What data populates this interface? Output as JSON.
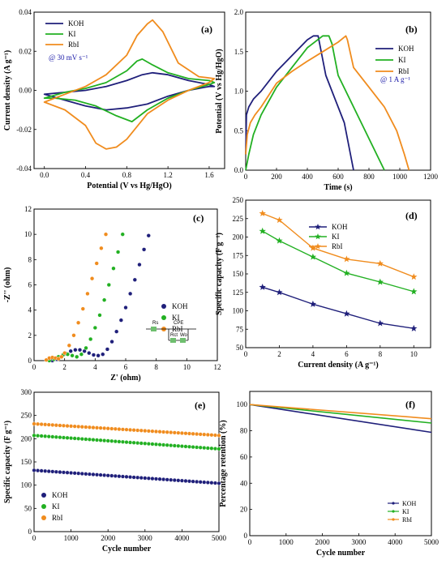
{
  "colors": {
    "koh": "#1f1f7a",
    "ki": "#22b022",
    "rbi": "#f08c1e",
    "note": "#1a1aa8"
  },
  "chart_data": [
    {
      "panel": "(a)",
      "type": "line",
      "xlabel": "Potential (V vs Hg/HgO)",
      "ylabel": "Current density (A g⁻¹)",
      "xlim": [
        -0.1,
        1.75
      ],
      "ylim": [
        -0.04,
        0.04
      ],
      "xticks": [
        0.0,
        0.4,
        0.8,
        1.2,
        1.6
      ],
      "xticklabels": [
        "0.0",
        "0.4",
        "0.8",
        "1.2",
        "1.6"
      ],
      "yticks": [
        -0.04,
        -0.02,
        0.0,
        0.02,
        0.04
      ],
      "yticklabels": [
        "-0.04",
        "-0.02",
        "0.00",
        "0.02",
        "0.04"
      ],
      "annotation": "@ 30 mV s⁻¹",
      "legend": "top-left",
      "series": [
        {
          "name": "KOH",
          "color": "#1f1f7a",
          "x": [
            0.0,
            0.2,
            0.4,
            0.6,
            0.8,
            0.95,
            1.05,
            1.2,
            1.4,
            1.6,
            1.65,
            1.6,
            1.4,
            1.2,
            1.0,
            0.8,
            0.6,
            0.4,
            0.2,
            0.0
          ],
          "y": [
            -0.002,
            -0.001,
            0.0,
            0.002,
            0.005,
            0.008,
            0.009,
            0.008,
            0.005,
            0.003,
            0.002,
            0.002,
            0.0,
            -0.003,
            -0.007,
            -0.009,
            -0.01,
            -0.008,
            -0.005,
            -0.002
          ]
        },
        {
          "name": "KI",
          "color": "#22b022",
          "x": [
            0.0,
            0.2,
            0.4,
            0.6,
            0.8,
            0.9,
            0.95,
            1.05,
            1.2,
            1.4,
            1.6,
            1.65,
            1.6,
            1.4,
            1.2,
            1.0,
            0.85,
            0.7,
            0.5,
            0.3,
            0.1,
            0.0
          ],
          "y": [
            -0.004,
            -0.001,
            0.001,
            0.004,
            0.01,
            0.015,
            0.016,
            0.013,
            0.009,
            0.006,
            0.005,
            0.004,
            0.003,
            0.0,
            -0.004,
            -0.01,
            -0.016,
            -0.013,
            -0.008,
            -0.005,
            -0.004,
            -0.004
          ]
        },
        {
          "name": "RbI",
          "color": "#f08c1e",
          "x": [
            0.0,
            0.2,
            0.4,
            0.6,
            0.8,
            0.9,
            1.0,
            1.05,
            1.15,
            1.3,
            1.5,
            1.65,
            1.6,
            1.4,
            1.2,
            1.0,
            0.8,
            0.7,
            0.6,
            0.5,
            0.4,
            0.2,
            0.0
          ],
          "y": [
            -0.006,
            -0.002,
            0.002,
            0.008,
            0.018,
            0.028,
            0.034,
            0.036,
            0.03,
            0.014,
            0.007,
            0.006,
            0.004,
            0.0,
            -0.005,
            -0.012,
            -0.025,
            -0.029,
            -0.03,
            -0.027,
            -0.018,
            -0.01,
            -0.006
          ]
        }
      ]
    },
    {
      "panel": "(b)",
      "type": "line",
      "xlabel": "Time (s)",
      "ylabel": "Potential (V vs Hg/HgO)",
      "xlim": [
        0,
        1200
      ],
      "ylim": [
        0.0,
        2.0
      ],
      "xticks": [
        0,
        200,
        400,
        600,
        800,
        1000,
        1200
      ],
      "xticklabels": [
        "0",
        "200",
        "400",
        "600",
        "800",
        "1000",
        "1200"
      ],
      "yticks": [
        0.0,
        0.5,
        1.0,
        1.5,
        2.0
      ],
      "yticklabels": [
        "0.0",
        "0.5",
        "1.0",
        "1.5",
        "2.0"
      ],
      "annotation": "@ 1 A g⁻¹",
      "legend": "right",
      "series": [
        {
          "name": "KOH",
          "color": "#1f1f7a",
          "x": [
            0,
            5,
            20,
            50,
            100,
            200,
            300,
            400,
            440,
            470,
            480,
            520,
            580,
            640,
            680,
            700
          ],
          "y": [
            0.2,
            0.7,
            0.8,
            0.9,
            1.0,
            1.25,
            1.45,
            1.65,
            1.7,
            1.7,
            1.6,
            1.2,
            0.9,
            0.6,
            0.2,
            0.0
          ]
        },
        {
          "name": "KI",
          "color": "#22b022",
          "x": [
            0,
            20,
            50,
            100,
            200,
            300,
            400,
            500,
            540,
            560,
            600,
            700,
            800,
            850,
            900
          ],
          "y": [
            0.0,
            0.2,
            0.45,
            0.7,
            1.05,
            1.3,
            1.55,
            1.7,
            1.7,
            1.6,
            1.2,
            0.8,
            0.4,
            0.2,
            0.0
          ]
        },
        {
          "name": "RbI",
          "color": "#f08c1e",
          "x": [
            0,
            10,
            30,
            60,
            100,
            200,
            300,
            400,
            500,
            600,
            650,
            660,
            700,
            800,
            900,
            980,
            1030,
            1060
          ],
          "y": [
            0.2,
            0.45,
            0.6,
            0.7,
            0.8,
            1.1,
            1.25,
            1.38,
            1.5,
            1.62,
            1.7,
            1.65,
            1.3,
            1.05,
            0.8,
            0.5,
            0.2,
            0.0
          ]
        }
      ]
    },
    {
      "panel": "(c)",
      "type": "scatter",
      "xlabel": "Z' (ohm)",
      "ylabel": "-Z'' (ohm)",
      "xlim": [
        0,
        12
      ],
      "ylim": [
        0,
        12
      ],
      "xticks": [
        0,
        2,
        4,
        6,
        8,
        10,
        12
      ],
      "xticklabels": [
        "0",
        "2",
        "4",
        "6",
        "8",
        "10",
        "12"
      ],
      "yticks": [
        0,
        2,
        4,
        6,
        8,
        10,
        12
      ],
      "yticklabels": [
        "0",
        "2",
        "4",
        "6",
        "8",
        "10",
        "12"
      ],
      "legend": "right",
      "circuit": {
        "labels": [
          "Rs",
          "CPE",
          "Rct",
          "Wo"
        ]
      },
      "series": [
        {
          "name": "KOH",
          "color": "#1f1f7a",
          "x": [
            1.2,
            1.5,
            1.8,
            2.1,
            2.4,
            2.7,
            3.0,
            3.3,
            3.6,
            3.9,
            4.2,
            4.5,
            4.8,
            5.1,
            5.4,
            5.7,
            6.0,
            6.3,
            6.6,
            6.9,
            7.2,
            7.5
          ],
          "y": [
            0.0,
            0.1,
            0.3,
            0.55,
            0.75,
            0.85,
            0.85,
            0.75,
            0.6,
            0.45,
            0.4,
            0.5,
            0.9,
            1.5,
            2.3,
            3.2,
            4.2,
            5.3,
            6.4,
            7.6,
            8.8,
            9.9
          ]
        },
        {
          "name": "KI",
          "color": "#22b022",
          "x": [
            1.0,
            1.3,
            1.6,
            1.9,
            2.2,
            2.5,
            2.8,
            3.1,
            3.4,
            3.7,
            4.0,
            4.3,
            4.6,
            4.9,
            5.2,
            5.5,
            5.8
          ],
          "y": [
            0.0,
            0.1,
            0.3,
            0.45,
            0.5,
            0.4,
            0.3,
            0.5,
            1.0,
            1.7,
            2.6,
            3.6,
            4.8,
            6.0,
            7.3,
            8.6,
            10.0
          ]
        },
        {
          "name": "RbI",
          "color": "#f08c1e",
          "x": [
            0.8,
            1.0,
            1.2,
            1.4,
            1.6,
            1.8,
            2.0,
            2.3,
            2.6,
            2.9,
            3.2,
            3.5,
            3.8,
            4.1,
            4.4,
            4.7
          ],
          "y": [
            0.05,
            0.2,
            0.25,
            0.2,
            0.15,
            0.3,
            0.6,
            1.2,
            2.0,
            3.0,
            4.1,
            5.3,
            6.5,
            7.7,
            8.9,
            10.0
          ]
        }
      ]
    },
    {
      "panel": "(d)",
      "type": "line",
      "xlabel": "Current density (A g⁻¹)",
      "ylabel": "Specific capacity (F g⁻¹)",
      "xlim": [
        0,
        11
      ],
      "ylim": [
        50,
        250
      ],
      "xticks": [
        0,
        2,
        4,
        6,
        8,
        10
      ],
      "xticklabels": [
        "0",
        "2",
        "4",
        "6",
        "8",
        "10"
      ],
      "yticks": [
        50,
        75,
        100,
        125,
        150,
        175,
        200,
        225,
        250
      ],
      "yticklabels": [
        "50",
        "75",
        "100",
        "125",
        "150",
        "175",
        "200",
        "225",
        "250"
      ],
      "legend": "top-center",
      "x": [
        1,
        2,
        4,
        6,
        8,
        10
      ],
      "series": [
        {
          "name": "KOH",
          "color": "#1f1f7a",
          "marker": "star",
          "values": [
            132,
            125,
            109,
            96,
            83,
            76
          ]
        },
        {
          "name": "KI",
          "color": "#22b022",
          "marker": "star",
          "values": [
            208,
            195,
            173,
            151,
            139,
            126
          ]
        },
        {
          "name": "RbI",
          "color": "#f08c1e",
          "marker": "star",
          "values": [
            232,
            223,
            185,
            170,
            164,
            146
          ]
        }
      ]
    },
    {
      "panel": "(e)",
      "type": "scatter",
      "xlabel": "Cycle number",
      "ylabel": "Specific capacity (F g⁻¹)",
      "xlim": [
        0,
        5000
      ],
      "ylim": [
        0,
        300
      ],
      "xticks": [
        0,
        1000,
        2000,
        3000,
        4000,
        5000
      ],
      "xticklabels": [
        "0",
        "1000",
        "2000",
        "3000",
        "4000",
        "5000"
      ],
      "yticks": [
        0,
        50,
        100,
        150,
        200,
        250,
        300
      ],
      "yticklabels": [
        "0",
        "50",
        "100",
        "150",
        "200",
        "250",
        "300"
      ],
      "legend": "bottom-left",
      "series": [
        {
          "name": "KOH",
          "color": "#1f1f7a",
          "start": 132,
          "end": 104
        },
        {
          "name": "KI",
          "color": "#22b022",
          "start": 207,
          "end": 178
        },
        {
          "name": "RbI",
          "color": "#f08c1e",
          "start": 232,
          "end": 207
        }
      ]
    },
    {
      "panel": "(f)",
      "type": "line",
      "xlabel": "Cycle number",
      "ylabel": "Percentage retention (%)",
      "xlim": [
        0,
        5000
      ],
      "ylim": [
        0,
        110
      ],
      "xticks": [
        0,
        1000,
        2000,
        3000,
        4000,
        5000
      ],
      "xticklabels": [
        "0",
        "1000",
        "2000",
        "3000",
        "4000",
        "5000"
      ],
      "yticks": [
        0,
        20,
        40,
        60,
        80,
        100
      ],
      "yticklabels": [
        "0",
        "20",
        "40",
        "60",
        "80",
        "100"
      ],
      "legend": "bottom-right",
      "series": [
        {
          "name": "KOH",
          "color": "#1f1f7a",
          "start": 100,
          "end": 78.8
        },
        {
          "name": "KI",
          "color": "#22b022",
          "start": 100,
          "end": 85.9
        },
        {
          "name": "RbI",
          "color": "#f08c1e",
          "start": 100,
          "end": 89.2
        }
      ]
    }
  ]
}
